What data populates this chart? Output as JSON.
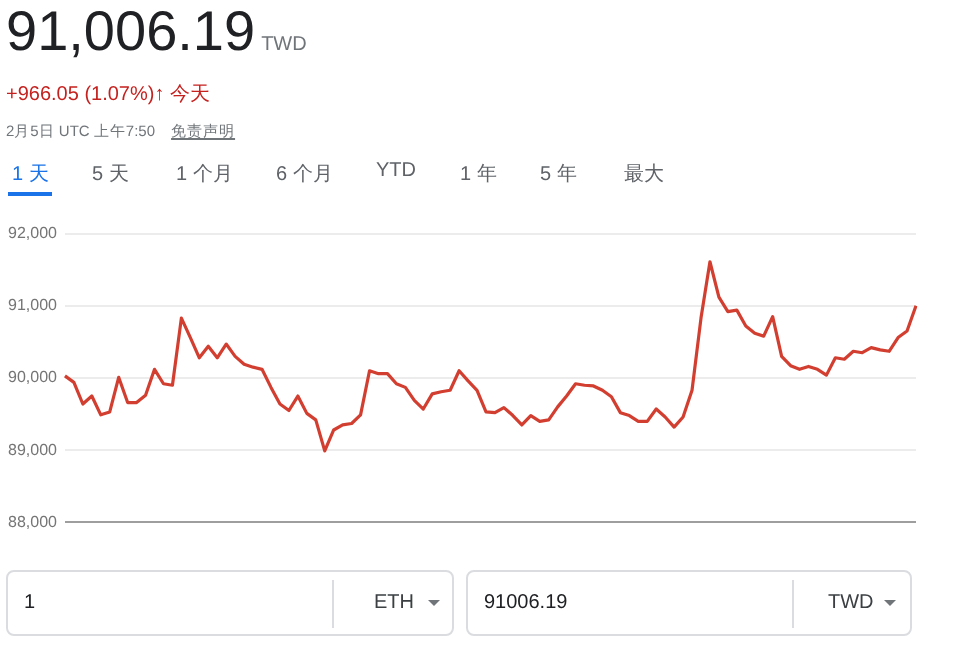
{
  "chart_data": {
    "type": "line",
    "title": "91,006.19",
    "subtitle": "+966.05 (1.07%)↑ 今天",
    "annotations": [
      "TWD",
      "2月5日 UTC 上午7:50",
      "免责声明",
      "1 天",
      "5 天",
      "1 个月",
      "6 个月",
      "YTD",
      "1 年",
      "5 年",
      "最大",
      "1",
      "ETH",
      "91006.19",
      "TWD"
    ],
    "categories": [
      null,
      null,
      null,
      null,
      null,
      null,
      null,
      null,
      null,
      null,
      null,
      null,
      null,
      null,
      null,
      null,
      null,
      null,
      null,
      null,
      null,
      null,
      null,
      null,
      null,
      null,
      null,
      null,
      null,
      null,
      null,
      null,
      null,
      null,
      null,
      null,
      null,
      null,
      null,
      null,
      null,
      null,
      null,
      null,
      null,
      null,
      null,
      null,
      null,
      null,
      null,
      null,
      null,
      null,
      null,
      null,
      null,
      null,
      null,
      null,
      null,
      null,
      null,
      null,
      null,
      null,
      null,
      null,
      null,
      null,
      null,
      null,
      null,
      null,
      null,
      null,
      null,
      null,
      null,
      null,
      null,
      null,
      null,
      null,
      null,
      null,
      null,
      null,
      null,
      null,
      null,
      null,
      null,
      null,
      null,
      null
    ],
    "series": [
      {
        "color": "#d23f31",
        "values": [
          90030,
          89940,
          89640,
          89750,
          89490,
          89530,
          90010,
          89660,
          89660,
          89760,
          90120,
          89920,
          89900,
          90830,
          90560,
          90280,
          90440,
          90280,
          90470,
          90300,
          90190,
          90150,
          90120,
          89870,
          89640,
          89550,
          89750,
          89510,
          89420,
          88990,
          89280,
          89350,
          89370,
          89490,
          90100,
          90060,
          90060,
          89920,
          89870,
          89690,
          89570,
          89780,
          89810,
          89830,
          90100,
          89960,
          89830,
          89530,
          89520,
          89590,
          89480,
          89350,
          89480,
          89400,
          89420,
          89600,
          89750,
          89920,
          89900,
          89890,
          89830,
          89740,
          89520,
          89480,
          89400,
          89400,
          89570,
          89460,
          89320,
          89460,
          89830,
          90830,
          91610,
          91120,
          90920,
          90940,
          90720,
          90620,
          90580,
          90850,
          90300,
          90170,
          90120,
          90160,
          90120,
          90040,
          90280,
          90260,
          90370,
          90350,
          90420,
          90390,
          90370,
          90560,
          90650,
          91000
        ]
      }
    ],
    "ylim": [
      88000,
      92000
    ],
    "yticks": [
      {
        "value": 88000,
        "label": "88,000"
      },
      {
        "value": 89000,
        "label": "89,000"
      },
      {
        "value": 90000,
        "label": "90,000"
      },
      {
        "value": 91000,
        "label": "91,000"
      },
      {
        "value": 92000,
        "label": "92,000"
      }
    ],
    "grid": "y",
    "marker": "none",
    "line_style": "solid"
  }
}
